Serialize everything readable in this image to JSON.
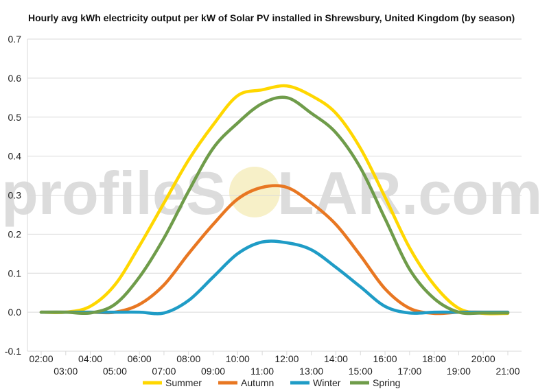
{
  "chart_data": {
    "type": "line",
    "title": "Hourly avg kWh electricity output per kW of Solar PV installed in Shrewsbury, United Kingdom (by season)",
    "watermark": [
      "profileS",
      "LAR.com"
    ],
    "x": [
      "02:00",
      "03:00",
      "04:00",
      "05:00",
      "06:00",
      "07:00",
      "08:00",
      "09:00",
      "10:00",
      "11:00",
      "12:00",
      "13:00",
      "14:00",
      "15:00",
      "16:00",
      "17:00",
      "18:00",
      "19:00",
      "20:00",
      "21:00"
    ],
    "x_tick_labels_top": [
      "02:00",
      "04:00",
      "06:00",
      "08:00",
      "10:00",
      "12:00",
      "14:00",
      "16:00",
      "18:00",
      "20:00"
    ],
    "x_tick_labels_bottom": [
      "03:00",
      "05:00",
      "07:00",
      "09:00",
      "11:00",
      "13:00",
      "15:00",
      "17:00",
      "19:00",
      "21:00"
    ],
    "ylim": [
      -0.1,
      0.7
    ],
    "y_ticks": [
      "-0.1",
      "0.0",
      "0.1",
      "0.2",
      "0.3",
      "0.4",
      "0.5",
      "0.6",
      "0.7"
    ],
    "grid": true,
    "legend_position": "bottom",
    "series": [
      {
        "name": "Summer",
        "color": "#FFD700",
        "values": [
          0.0,
          0.0,
          0.015,
          0.07,
          0.17,
          0.28,
          0.39,
          0.48,
          0.555,
          0.57,
          0.58,
          0.555,
          0.51,
          0.42,
          0.295,
          0.165,
          0.07,
          0.01,
          -0.003,
          -0.003
        ]
      },
      {
        "name": "Autumn",
        "color": "#E87722",
        "values": [
          0.0,
          0.0,
          0.0,
          0.0,
          0.02,
          0.07,
          0.15,
          0.225,
          0.29,
          0.32,
          0.32,
          0.28,
          0.225,
          0.145,
          0.06,
          0.01,
          -0.003,
          0.0,
          0.0,
          0.0
        ]
      },
      {
        "name": "Winter",
        "color": "#1F9CC6",
        "values": [
          0.0,
          0.0,
          0.0,
          0.0,
          0.0,
          -0.002,
          0.03,
          0.09,
          0.15,
          0.18,
          0.178,
          0.16,
          0.115,
          0.065,
          0.015,
          -0.002,
          0.0,
          0.0,
          0.0,
          0.0
        ]
      },
      {
        "name": "Spring",
        "color": "#6F9C4A",
        "values": [
          0.0,
          0.0,
          -0.002,
          0.02,
          0.09,
          0.19,
          0.31,
          0.42,
          0.485,
          0.535,
          0.55,
          0.51,
          0.46,
          0.37,
          0.24,
          0.11,
          0.035,
          0.0,
          -0.002,
          -0.002
        ]
      }
    ]
  }
}
